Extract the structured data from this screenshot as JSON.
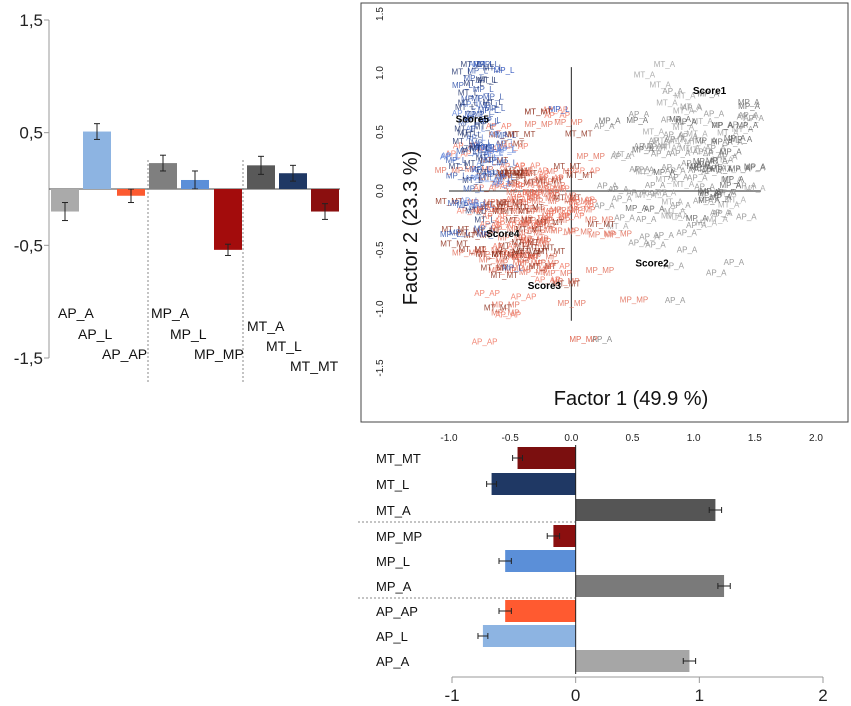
{
  "chart_data": [
    {
      "type": "bar",
      "id": "top-left-bars",
      "orientation": "vertical",
      "ylim": [
        -1.5,
        1.5
      ],
      "ytick_labels": [
        "1,5",
        "0,5",
        "-0,5",
        "-1,5"
      ],
      "ytick_values": [
        1.5,
        0.5,
        -0.5,
        -1.5
      ],
      "categories": [
        "AP_A",
        "AP_L",
        "AP_AP",
        "MP_A",
        "MP_L",
        "MP_MP",
        "MT_A",
        "MT_L",
        "MT_MT"
      ],
      "values": [
        -0.2,
        0.51,
        -0.06,
        0.23,
        0.08,
        -0.54,
        0.21,
        0.14,
        -0.2
      ],
      "errors": [
        0.08,
        0.07,
        0.06,
        0.07,
        0.08,
        0.05,
        0.08,
        0.07,
        0.07
      ],
      "colors": [
        "#aaaaaa",
        "#8db4e2",
        "#fc5a30",
        "#7f7f7f",
        "#5b8fd8",
        "#a30c0c",
        "#595959",
        "#1f3864",
        "#8b0f0f"
      ],
      "groups": [
        "AP",
        "MP",
        "MT"
      ]
    },
    {
      "type": "scatter",
      "id": "factor-map",
      "xlabel": "Factor 1 (49.9 %)",
      "ylabel": "Factor 2 (23.3 %)",
      "xlim": [
        -1.0,
        2.0
      ],
      "ylim": [
        -1.5,
        1.5
      ],
      "xticks": [
        "-1.0",
        "-0.5",
        "0.0",
        "0.5",
        "1.0",
        "1.5",
        "2.0"
      ],
      "yticks": [
        "1.5",
        "1.0",
        "0.5",
        "0.0",
        "-0.5",
        "-1.0",
        "-1.5"
      ],
      "score_labels": [
        {
          "label": "Score1",
          "x": 1.13,
          "y": 0.82
        },
        {
          "label": "Score2",
          "x": 0.66,
          "y": -0.64
        },
        {
          "label": "Score3",
          "x": -0.22,
          "y": -0.83
        },
        {
          "label": "Score4",
          "x": -0.56,
          "y": -0.39
        },
        {
          "label": "Score5",
          "x": -0.81,
          "y": 0.58
        }
      ],
      "point_groups": [
        {
          "label": "AP_A",
          "color": "#8a8a8a",
          "count": 70,
          "cx": 0.95,
          "cy": 0.05,
          "sx": 0.33,
          "sy": 0.38
        },
        {
          "label": "MT_A",
          "color": "#a0a0a0",
          "count": 40,
          "cx": 0.95,
          "cy": 0.2,
          "sx": 0.3,
          "sy": 0.35
        },
        {
          "label": "MP_A",
          "color": "#5a5a5a",
          "count": 30,
          "cx": 1.0,
          "cy": 0.25,
          "sx": 0.3,
          "sy": 0.3
        },
        {
          "label": "MP_MP",
          "color": "#e06a55",
          "count": 70,
          "cx": -0.25,
          "cy": -0.25,
          "sx": 0.28,
          "sy": 0.35
        },
        {
          "label": "MT_MT",
          "color": "#8b2a18",
          "count": 50,
          "cx": -0.45,
          "cy": -0.2,
          "sx": 0.25,
          "sy": 0.38
        },
        {
          "label": "AP_AP",
          "color": "#f0705a",
          "count": 40,
          "cx": -0.4,
          "cy": -0.15,
          "sx": 0.3,
          "sy": 0.35
        },
        {
          "label": "MP_L",
          "color": "#2d4fa8",
          "count": 40,
          "cx": -0.75,
          "cy": 0.35,
          "sx": 0.12,
          "sy": 0.4
        },
        {
          "label": "AP_L",
          "color": "#5b7fd8",
          "count": 30,
          "cx": -0.7,
          "cy": 0.3,
          "sx": 0.14,
          "sy": 0.4
        },
        {
          "label": "MT_L",
          "color": "#1c2f6a",
          "count": 25,
          "cx": -0.8,
          "cy": 0.4,
          "sx": 0.1,
          "sy": 0.4
        }
      ],
      "fixed_points": [
        {
          "label": "MP_L",
          "color": "#3a5cc0",
          "x": -0.55,
          "y": 1.0
        },
        {
          "label": "MP_L",
          "color": "#3a5cc0",
          "x": -0.1,
          "y": 0.67
        },
        {
          "label": "MT_MT",
          "color": "#8b2a18",
          "x": -0.27,
          "y": 0.65
        },
        {
          "label": "MP_MP",
          "color": "#e06a55",
          "x": 0.1,
          "y": -1.28
        },
        {
          "label": "AP_A",
          "color": "#8a8a8a",
          "x": 0.25,
          "y": -1.28
        },
        {
          "label": "MP_A",
          "color": "#7f7f7f",
          "x": 1.12,
          "y": 0.8
        },
        {
          "label": "MP_A",
          "color": "#7f7f7f",
          "x": 1.45,
          "y": 0.73
        }
      ]
    },
    {
      "type": "bar",
      "id": "bottom-right-bars",
      "orientation": "horizontal",
      "xlim": [
        -1,
        2
      ],
      "xtick_labels": [
        "-1",
        "0",
        "1",
        "2"
      ],
      "xtick_values": [
        -1,
        0,
        1,
        2
      ],
      "categories": [
        "MT_MT",
        "MT_L",
        "MT_A",
        "MP_MP",
        "MP_L",
        "MP_A",
        "AP_AP",
        "AP_L",
        "AP_A"
      ],
      "values": [
        -0.47,
        -0.68,
        1.13,
        -0.18,
        -0.57,
        1.2,
        -0.57,
        -0.75,
        0.92
      ],
      "errors": [
        0.04,
        0.04,
        0.05,
        0.05,
        0.05,
        0.05,
        0.05,
        0.04,
        0.05
      ],
      "colors": [
        "#7b0f0f",
        "#1f3864",
        "#555555",
        "#8b0f0f",
        "#5b8fd8",
        "#7a7a7a",
        "#ff5a30",
        "#8db4e2",
        "#a6a6a6"
      ]
    }
  ]
}
